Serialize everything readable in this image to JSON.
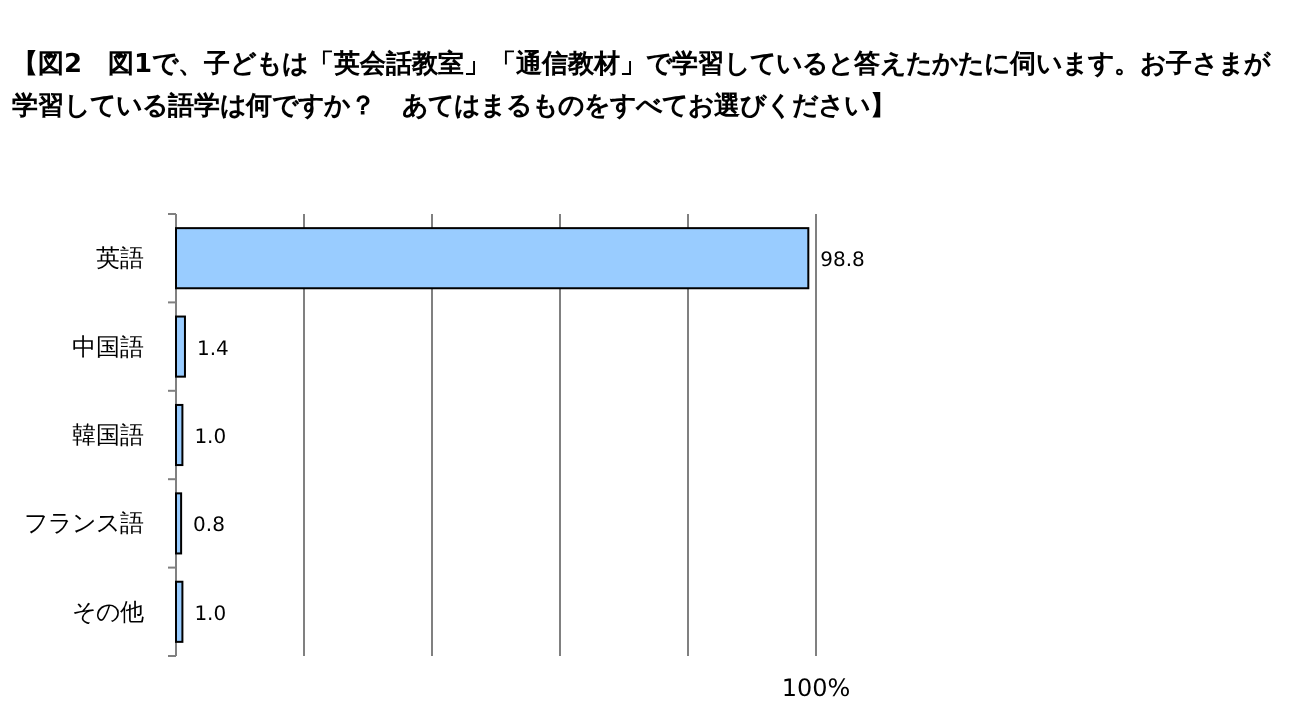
{
  "chart_data": {
    "type": "bar",
    "orientation": "horizontal",
    "title": "【図2　図1で、子どもは「英会話教室」「通信教材」で学習していると答えたかたに伺います。お子さまが学習している語学は何ですか？　あてはまるものをすべてお選びください】",
    "categories": [
      "英語",
      "中国語",
      "韓国語",
      "フランス語",
      "その他"
    ],
    "values": [
      98.8,
      1.4,
      1.0,
      0.8,
      1.0
    ],
    "value_labels": [
      "98.8",
      "1.4",
      "1.0",
      "0.8",
      "1.0"
    ],
    "color": "#99ccff",
    "xlim": [
      0,
      100
    ],
    "xticks": [
      {
        "value": 0,
        "label": null
      },
      {
        "value": 20,
        "label": null
      },
      {
        "value": 40,
        "label": null
      },
      {
        "value": 60,
        "label": null
      },
      {
        "value": 80,
        "label": null
      },
      {
        "value": 100,
        "label": "100%"
      }
    ],
    "grid": "x"
  }
}
